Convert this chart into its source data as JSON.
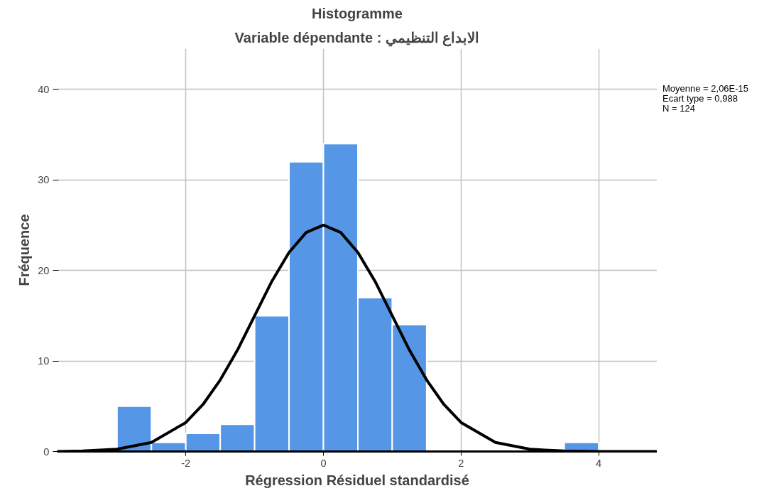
{
  "chart_data": {
    "type": "histogram",
    "title": "Histogramme",
    "subtitle": "Variable dépendante : الابداع التنظيمي",
    "xlabel": "Régression Résiduel standardisé",
    "ylabel": "Fréquence",
    "xlim": [
      -3.87,
      4.85
    ],
    "ylim": [
      0,
      44.5
    ],
    "xticks": [
      -2,
      0,
      2,
      4
    ],
    "yticks": [
      0,
      10,
      20,
      30,
      40
    ],
    "grid": true,
    "annotations": [
      "Moyenne = 2,06E-15",
      "Ecart type = 0,988",
      "N = 124"
    ],
    "series": [
      {
        "color": "#5596e6",
        "bins": [
          -3,
          -2.5,
          -2,
          -1.5,
          -1,
          -0.5,
          0,
          0.5,
          1,
          1.5,
          2,
          2.5,
          3,
          3.5,
          4
        ],
        "values": [
          5,
          1,
          2,
          3,
          15,
          32,
          34,
          17,
          14,
          0,
          0,
          0,
          0,
          1
        ]
      },
      {
        "type": "line",
        "color": "#000000",
        "x": [
          -3.87,
          -3.5,
          -3,
          -2.5,
          -2,
          -1.75,
          -1.5,
          -1.25,
          -1,
          -0.75,
          -0.5,
          -0.25,
          0,
          0.25,
          0.5,
          0.75,
          1,
          1.25,
          1.5,
          1.75,
          2,
          2.5,
          3,
          3.5,
          4,
          4.85
        ],
        "values": [
          0,
          0.05,
          0.25,
          1.0,
          3.2,
          5.2,
          7.9,
          11.2,
          15.0,
          18.8,
          22.0,
          24.2,
          25.0,
          24.2,
          22.0,
          18.8,
          15.0,
          11.2,
          7.9,
          5.2,
          3.2,
          1.0,
          0.25,
          0.05,
          0,
          0
        ]
      }
    ]
  }
}
